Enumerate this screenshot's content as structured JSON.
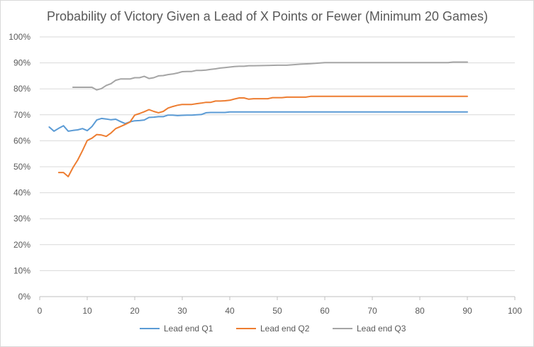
{
  "chart_data": {
    "type": "line",
    "title": "Probability of Victory Given a Lead of X Points or Fewer (Minimum 20 Games)",
    "xlabel": "",
    "ylabel": "",
    "xlim": [
      0,
      100
    ],
    "ylim": [
      0,
      1
    ],
    "x_ticks": [
      0,
      10,
      20,
      30,
      40,
      50,
      60,
      70,
      80,
      90,
      100
    ],
    "y_ticks": [
      0,
      0.1,
      0.2,
      0.3,
      0.4,
      0.5,
      0.6,
      0.7,
      0.8,
      0.9,
      1.0
    ],
    "x_tick_labels": [
      "0",
      "10",
      "20",
      "30",
      "40",
      "50",
      "60",
      "70",
      "80",
      "90",
      "100"
    ],
    "y_tick_labels": [
      "0%",
      "10%",
      "20%",
      "30%",
      "40%",
      "50%",
      "60%",
      "70%",
      "80%",
      "90%",
      "100%"
    ],
    "grid": "horizontal",
    "legend_position": "bottom",
    "series": [
      {
        "name": "Lead end Q1",
        "color": "#5b9bd5",
        "points": [
          [
            2,
            0.653
          ],
          [
            3,
            0.637
          ],
          [
            4,
            0.648
          ],
          [
            5,
            0.658
          ],
          [
            6,
            0.637
          ],
          [
            7,
            0.64
          ],
          [
            8,
            0.642
          ],
          [
            9,
            0.647
          ],
          [
            10,
            0.639
          ],
          [
            11,
            0.655
          ],
          [
            12,
            0.68
          ],
          [
            13,
            0.686
          ],
          [
            14,
            0.684
          ],
          [
            15,
            0.681
          ],
          [
            16,
            0.683
          ],
          [
            17,
            0.674
          ],
          [
            18,
            0.666
          ],
          [
            19,
            0.673
          ],
          [
            20,
            0.677
          ],
          [
            21,
            0.678
          ],
          [
            22,
            0.68
          ],
          [
            23,
            0.69
          ],
          [
            24,
            0.691
          ],
          [
            25,
            0.693
          ],
          [
            26,
            0.693
          ],
          [
            27,
            0.699
          ],
          [
            28,
            0.699
          ],
          [
            29,
            0.697
          ],
          [
            30,
            0.698
          ],
          [
            31,
            0.699
          ],
          [
            32,
            0.699
          ],
          [
            33,
            0.7
          ],
          [
            34,
            0.701
          ],
          [
            35,
            0.708
          ],
          [
            36,
            0.709
          ],
          [
            37,
            0.709
          ],
          [
            38,
            0.709
          ],
          [
            39,
            0.709
          ],
          [
            40,
            0.711
          ],
          [
            45,
            0.711
          ],
          [
            50,
            0.711
          ],
          [
            60,
            0.711
          ],
          [
            70,
            0.711
          ],
          [
            80,
            0.711
          ],
          [
            90,
            0.711
          ]
        ]
      },
      {
        "name": "Lead end Q2",
        "color": "#ed7d31",
        "points": [
          [
            4,
            0.478
          ],
          [
            5,
            0.478
          ],
          [
            6,
            0.462
          ],
          [
            7,
            0.497
          ],
          [
            8,
            0.526
          ],
          [
            9,
            0.562
          ],
          [
            10,
            0.601
          ],
          [
            11,
            0.61
          ],
          [
            12,
            0.624
          ],
          [
            13,
            0.622
          ],
          [
            14,
            0.617
          ],
          [
            15,
            0.63
          ],
          [
            16,
            0.647
          ],
          [
            17,
            0.655
          ],
          [
            18,
            0.663
          ],
          [
            19,
            0.672
          ],
          [
            20,
            0.699
          ],
          [
            21,
            0.705
          ],
          [
            22,
            0.712
          ],
          [
            23,
            0.72
          ],
          [
            24,
            0.713
          ],
          [
            25,
            0.708
          ],
          [
            26,
            0.713
          ],
          [
            27,
            0.726
          ],
          [
            28,
            0.732
          ],
          [
            29,
            0.737
          ],
          [
            30,
            0.74
          ],
          [
            31,
            0.74
          ],
          [
            32,
            0.74
          ],
          [
            33,
            0.743
          ],
          [
            34,
            0.745
          ],
          [
            35,
            0.748
          ],
          [
            36,
            0.748
          ],
          [
            37,
            0.753
          ],
          [
            38,
            0.753
          ],
          [
            39,
            0.754
          ],
          [
            40,
            0.756
          ],
          [
            41,
            0.761
          ],
          [
            42,
            0.765
          ],
          [
            43,
            0.765
          ],
          [
            44,
            0.76
          ],
          [
            45,
            0.762
          ],
          [
            46,
            0.762
          ],
          [
            47,
            0.762
          ],
          [
            48,
            0.762
          ],
          [
            49,
            0.766
          ],
          [
            50,
            0.766
          ],
          [
            51,
            0.766
          ],
          [
            52,
            0.768
          ],
          [
            55,
            0.768
          ],
          [
            56,
            0.768
          ],
          [
            57,
            0.771
          ],
          [
            60,
            0.771
          ],
          [
            70,
            0.771
          ],
          [
            80,
            0.771
          ],
          [
            90,
            0.771
          ]
        ]
      },
      {
        "name": "Lead end Q3",
        "color": "#a5a5a5",
        "points": [
          [
            7,
            0.806
          ],
          [
            8,
            0.806
          ],
          [
            9,
            0.806
          ],
          [
            10,
            0.806
          ],
          [
            11,
            0.806
          ],
          [
            12,
            0.796
          ],
          [
            13,
            0.801
          ],
          [
            14,
            0.813
          ],
          [
            15,
            0.82
          ],
          [
            16,
            0.833
          ],
          [
            17,
            0.838
          ],
          [
            18,
            0.838
          ],
          [
            19,
            0.838
          ],
          [
            20,
            0.843
          ],
          [
            21,
            0.843
          ],
          [
            22,
            0.848
          ],
          [
            23,
            0.84
          ],
          [
            24,
            0.843
          ],
          [
            25,
            0.85
          ],
          [
            26,
            0.851
          ],
          [
            27,
            0.855
          ],
          [
            28,
            0.857
          ],
          [
            29,
            0.861
          ],
          [
            30,
            0.866
          ],
          [
            31,
            0.867
          ],
          [
            32,
            0.867
          ],
          [
            33,
            0.871
          ],
          [
            34,
            0.871
          ],
          [
            35,
            0.872
          ],
          [
            36,
            0.875
          ],
          [
            37,
            0.877
          ],
          [
            38,
            0.88
          ],
          [
            39,
            0.882
          ],
          [
            40,
            0.884
          ],
          [
            41,
            0.886
          ],
          [
            42,
            0.887
          ],
          [
            43,
            0.887
          ],
          [
            44,
            0.889
          ],
          [
            45,
            0.889
          ],
          [
            50,
            0.891
          ],
          [
            52,
            0.891
          ],
          [
            55,
            0.895
          ],
          [
            57,
            0.897
          ],
          [
            58,
            0.898
          ],
          [
            60,
            0.901
          ],
          [
            70,
            0.901
          ],
          [
            80,
            0.901
          ],
          [
            86,
            0.901
          ],
          [
            87,
            0.903
          ],
          [
            90,
            0.903
          ]
        ]
      }
    ]
  }
}
